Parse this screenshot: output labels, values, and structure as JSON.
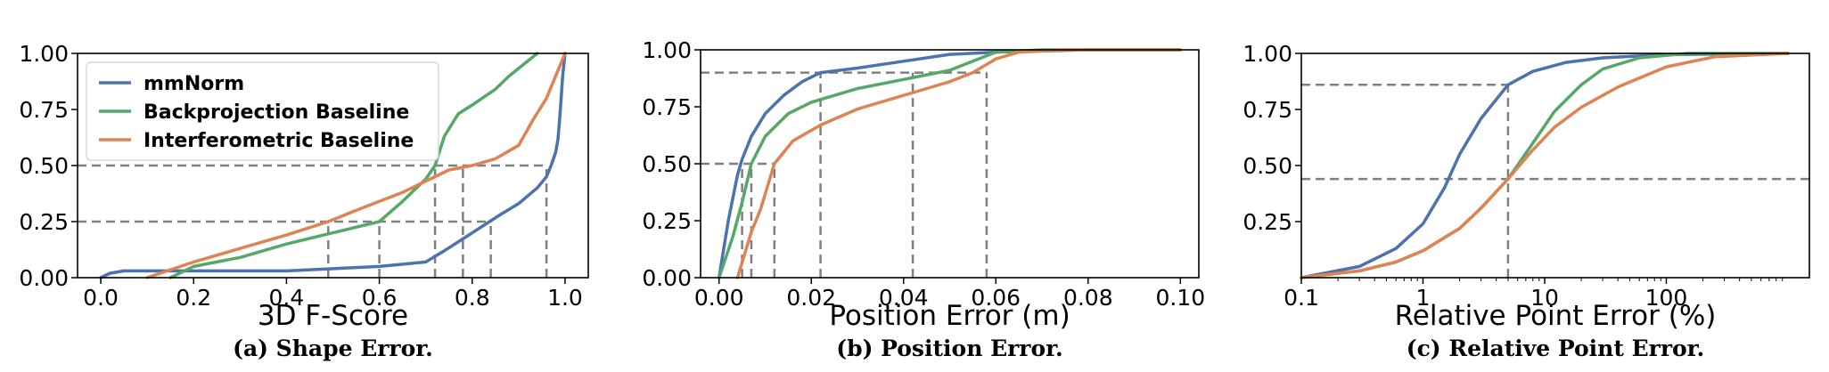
{
  "colors": {
    "mmnorm": "#4c72b0",
    "backprojection": "#55a868",
    "interferometric": "#dd8452",
    "guide": "#808080"
  },
  "chart_data": [
    {
      "type": "line",
      "caption": "(a) Shape Error.",
      "xlabel": "3D F-Score",
      "ylabel": "",
      "xlim": [
        -0.05,
        1.05
      ],
      "ylim": [
        0,
        1
      ],
      "xticks": [
        0.0,
        0.2,
        0.4,
        0.6,
        0.8,
        1.0
      ],
      "xtick_labels": [
        "0.0",
        "0.2",
        "0.4",
        "0.6",
        "0.8",
        "1.0"
      ],
      "yticks": [
        0,
        0.25,
        0.5,
        0.75,
        1.0
      ],
      "ytick_labels": [
        "0.00",
        "0.25",
        "0.50",
        "0.75",
        "1.00"
      ],
      "legend": {
        "placement": "upper-left",
        "entries": [
          "mmNorm",
          "Backprojection Baseline",
          "Interferometric Baseline"
        ]
      },
      "guides": {
        "horizontal": [
          0.5,
          0.25
        ],
        "vertical": [
          {
            "x": 0.49,
            "y": 0.25
          },
          {
            "x": 0.6,
            "y": 0.25
          },
          {
            "x": 0.72,
            "y": 0.5
          },
          {
            "x": 0.78,
            "y": 0.5
          },
          {
            "x": 0.84,
            "y": 0.25
          },
          {
            "x": 0.96,
            "y": 0.5
          }
        ]
      },
      "series": [
        {
          "name": "mmNorm",
          "color_key": "mmnorm",
          "points": [
            [
              0.0,
              0.0
            ],
            [
              0.02,
              0.02
            ],
            [
              0.05,
              0.03
            ],
            [
              0.2,
              0.03
            ],
            [
              0.4,
              0.03
            ],
            [
              0.6,
              0.05
            ],
            [
              0.7,
              0.07
            ],
            [
              0.74,
              0.12
            ],
            [
              0.8,
              0.2
            ],
            [
              0.86,
              0.28
            ],
            [
              0.9,
              0.33
            ],
            [
              0.94,
              0.4
            ],
            [
              0.96,
              0.45
            ],
            [
              0.97,
              0.5
            ],
            [
              0.98,
              0.56
            ],
            [
              0.985,
              0.62
            ],
            [
              0.99,
              0.75
            ],
            [
              0.995,
              0.9
            ],
            [
              1.0,
              1.0
            ]
          ]
        },
        {
          "name": "Backprojection Baseline",
          "color_key": "backprojection",
          "points": [
            [
              0.15,
              0.0
            ],
            [
              0.2,
              0.05
            ],
            [
              0.3,
              0.09
            ],
            [
              0.4,
              0.15
            ],
            [
              0.5,
              0.2
            ],
            [
              0.6,
              0.25
            ],
            [
              0.65,
              0.34
            ],
            [
              0.7,
              0.44
            ],
            [
              0.72,
              0.5
            ],
            [
              0.74,
              0.63
            ],
            [
              0.77,
              0.73
            ],
            [
              0.8,
              0.77
            ],
            [
              0.85,
              0.84
            ],
            [
              0.88,
              0.9
            ],
            [
              0.91,
              0.95
            ],
            [
              0.94,
              1.0
            ]
          ]
        },
        {
          "name": "Interferometric Baseline",
          "color_key": "interferometric",
          "points": [
            [
              0.1,
              0.0
            ],
            [
              0.2,
              0.07
            ],
            [
              0.3,
              0.13
            ],
            [
              0.4,
              0.19
            ],
            [
              0.49,
              0.25
            ],
            [
              0.55,
              0.3
            ],
            [
              0.6,
              0.34
            ],
            [
              0.65,
              0.38
            ],
            [
              0.7,
              0.43
            ],
            [
              0.75,
              0.48
            ],
            [
              0.8,
              0.5
            ],
            [
              0.85,
              0.53
            ],
            [
              0.9,
              0.59
            ],
            [
              0.93,
              0.7
            ],
            [
              0.96,
              0.8
            ],
            [
              0.98,
              0.9
            ],
            [
              1.0,
              1.0
            ]
          ]
        }
      ]
    },
    {
      "type": "line",
      "caption": "(b) Position Error.",
      "xlabel": "Position Error (m)",
      "ylabel": "",
      "xlim": [
        -0.004,
        0.104
      ],
      "ylim": [
        0,
        1
      ],
      "xticks": [
        0.0,
        0.02,
        0.04,
        0.06,
        0.08,
        0.1
      ],
      "xtick_labels": [
        "0.00",
        "0.02",
        "0.04",
        "0.06",
        "0.08",
        "0.10"
      ],
      "yticks": [
        0,
        0.25,
        0.5,
        0.75,
        1.0
      ],
      "ytick_labels": [
        "0.00",
        "0.25",
        "0.50",
        "0.75",
        "1.00"
      ],
      "guides": {
        "horizontal": [
          0.9,
          0.5
        ],
        "vertical": [
          {
            "x": 0.005,
            "y": 0.5
          },
          {
            "x": 0.007,
            "y": 0.5
          },
          {
            "x": 0.012,
            "y": 0.5
          },
          {
            "x": 0.022,
            "y": 0.9
          },
          {
            "x": 0.042,
            "y": 0.9
          },
          {
            "x": 0.058,
            "y": 0.9
          }
        ]
      },
      "series": [
        {
          "name": "mmNorm",
          "color_key": "mmnorm",
          "points": [
            [
              0.0,
              0.0
            ],
            [
              0.002,
              0.25
            ],
            [
              0.004,
              0.45
            ],
            [
              0.005,
              0.52
            ],
            [
              0.007,
              0.62
            ],
            [
              0.01,
              0.72
            ],
            [
              0.014,
              0.8
            ],
            [
              0.018,
              0.86
            ],
            [
              0.022,
              0.9
            ],
            [
              0.03,
              0.92
            ],
            [
              0.04,
              0.95
            ],
            [
              0.05,
              0.98
            ],
            [
              0.06,
              0.99
            ],
            [
              0.08,
              1.0
            ],
            [
              0.1,
              1.0
            ]
          ]
        },
        {
          "name": "Backprojection Baseline",
          "color_key": "backprojection",
          "points": [
            [
              0.0,
              0.0
            ],
            [
              0.003,
              0.18
            ],
            [
              0.005,
              0.33
            ],
            [
              0.007,
              0.5
            ],
            [
              0.01,
              0.62
            ],
            [
              0.015,
              0.72
            ],
            [
              0.02,
              0.77
            ],
            [
              0.025,
              0.8
            ],
            [
              0.03,
              0.83
            ],
            [
              0.04,
              0.87
            ],
            [
              0.05,
              0.91
            ],
            [
              0.055,
              0.95
            ],
            [
              0.06,
              0.99
            ],
            [
              0.07,
              1.0
            ],
            [
              0.1,
              1.0
            ]
          ]
        },
        {
          "name": "Interferometric Baseline",
          "color_key": "interferometric",
          "points": [
            [
              0.004,
              0.0
            ],
            [
              0.007,
              0.2
            ],
            [
              0.009,
              0.3
            ],
            [
              0.012,
              0.5
            ],
            [
              0.016,
              0.6
            ],
            [
              0.022,
              0.67
            ],
            [
              0.03,
              0.74
            ],
            [
              0.04,
              0.8
            ],
            [
              0.045,
              0.83
            ],
            [
              0.05,
              0.86
            ],
            [
              0.055,
              0.9
            ],
            [
              0.06,
              0.96
            ],
            [
              0.065,
              0.99
            ],
            [
              0.075,
              1.0
            ],
            [
              0.1,
              1.0
            ]
          ]
        }
      ]
    },
    {
      "type": "line",
      "caption": "(c) Relative Point Error.",
      "xlabel": "Relative Point Error (%)",
      "ylabel": "",
      "xscale": "log",
      "xlim": [
        0.1,
        1500
      ],
      "ylim": [
        0,
        1
      ],
      "xticks": [
        0.1,
        1,
        10,
        100
      ],
      "xtick_labels": [
        "0.1",
        "1",
        "10",
        "100"
      ],
      "yticks": [
        0.25,
        0.5,
        0.75,
        1.0
      ],
      "ytick_labels": [
        "0.25",
        "0.50",
        "0.75",
        "1.00"
      ],
      "guides": {
        "horizontal": [
          0.86,
          0.44
        ],
        "vertical": [
          {
            "x": 5,
            "y": 0.86
          }
        ]
      },
      "series": [
        {
          "name": "mmNorm",
          "color_key": "mmnorm",
          "points": [
            [
              0.1,
              0.0
            ],
            [
              0.3,
              0.05
            ],
            [
              0.6,
              0.13
            ],
            [
              1.0,
              0.24
            ],
            [
              1.5,
              0.4
            ],
            [
              2.0,
              0.55
            ],
            [
              3.0,
              0.71
            ],
            [
              5.0,
              0.86
            ],
            [
              8.0,
              0.92
            ],
            [
              15,
              0.96
            ],
            [
              30,
              0.98
            ],
            [
              100,
              0.995
            ],
            [
              1000,
              1.0
            ]
          ]
        },
        {
          "name": "Backprojection Baseline",
          "color_key": "backprojection",
          "points": [
            [
              0.1,
              0.0
            ],
            [
              0.3,
              0.03
            ],
            [
              0.6,
              0.07
            ],
            [
              1.0,
              0.12
            ],
            [
              2.0,
              0.22
            ],
            [
              3.0,
              0.31
            ],
            [
              5.0,
              0.44
            ],
            [
              8.0,
              0.6
            ],
            [
              12,
              0.74
            ],
            [
              20,
              0.86
            ],
            [
              30,
              0.93
            ],
            [
              60,
              0.98
            ],
            [
              150,
              1.0
            ],
            [
              1000,
              1.0
            ]
          ]
        },
        {
          "name": "Interferometric Baseline",
          "color_key": "interferometric",
          "points": [
            [
              0.1,
              0.0
            ],
            [
              0.3,
              0.03
            ],
            [
              0.6,
              0.07
            ],
            [
              1.0,
              0.12
            ],
            [
              2.0,
              0.22
            ],
            [
              3.0,
              0.31
            ],
            [
              5.0,
              0.44
            ],
            [
              8.0,
              0.57
            ],
            [
              12,
              0.67
            ],
            [
              20,
              0.76
            ],
            [
              40,
              0.85
            ],
            [
              100,
              0.94
            ],
            [
              250,
              0.985
            ],
            [
              1000,
              1.0
            ]
          ]
        }
      ]
    }
  ]
}
